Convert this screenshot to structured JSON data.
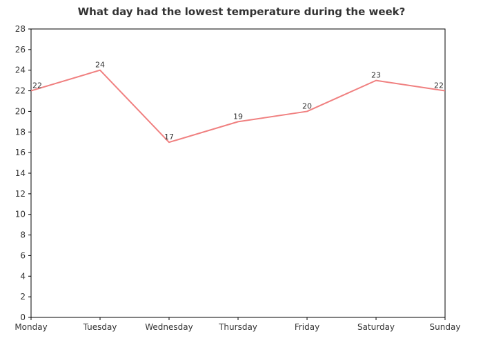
{
  "chart_data": {
    "type": "line",
    "title": "What day had the lowest temperature during the week?",
    "categories": [
      "Monday",
      "Tuesday",
      "Wednesday",
      "Thursday",
      "Friday",
      "Saturday",
      "Sunday"
    ],
    "series": [
      {
        "values": [
          22,
          24,
          17,
          19,
          20,
          23,
          22
        ],
        "color": "#f08080"
      }
    ],
    "xlabel": "",
    "ylabel": "",
    "ylim": [
      0,
      28
    ],
    "yticks": [
      0,
      2,
      4,
      6,
      8,
      10,
      12,
      14,
      16,
      18,
      20,
      22,
      24,
      26,
      28
    ],
    "grid": false,
    "legend": "none"
  }
}
